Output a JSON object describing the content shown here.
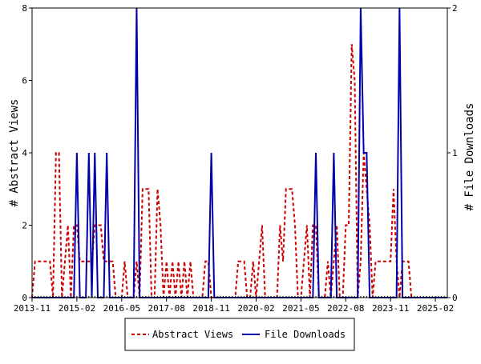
{
  "chart_data": {
    "type": "line",
    "x_tick_labels": [
      "2013-11",
      "2015-02",
      "2016-05",
      "2017-08",
      "2018-11",
      "2020-02",
      "2021-05",
      "2022-08",
      "2023-11",
      "2025-02"
    ],
    "y_left": {
      "label": "# Abstract Views",
      "lim": [
        0,
        8
      ],
      "ticks": [
        "0",
        "2",
        "4",
        "6",
        "8"
      ]
    },
    "y_right": {
      "label": "# File Downloads",
      "lim": [
        0,
        2
      ],
      "ticks": [
        "0",
        "1",
        "2"
      ]
    },
    "grid": false,
    "legend_position": "bottom",
    "n_months": 140,
    "series": [
      {
        "name": "Abstract Views",
        "axis": "left",
        "color": "#cc0000",
        "style": "dashed",
        "values": [
          0,
          1,
          1,
          1,
          1,
          1,
          1,
          0,
          4,
          4,
          0,
          1,
          2,
          0,
          2,
          2,
          1,
          1,
          1,
          1,
          1,
          2,
          2,
          2,
          1,
          1,
          1,
          1,
          0,
          0,
          0,
          1,
          0,
          0,
          0,
          1,
          0,
          3,
          3,
          3,
          0,
          0,
          3,
          2,
          0,
          1,
          0,
          1,
          0,
          1,
          0,
          1,
          0,
          1,
          0,
          0,
          0,
          0,
          1,
          1,
          0,
          0,
          0,
          0,
          0,
          0,
          0,
          0,
          0,
          1,
          1,
          1,
          0,
          0,
          1,
          0,
          1,
          2,
          0,
          0,
          0,
          0,
          0,
          2,
          1,
          3,
          3,
          3,
          2,
          0,
          0,
          1,
          2,
          0,
          2,
          2,
          0,
          0,
          0,
          1,
          0,
          1,
          2,
          0,
          0,
          2,
          2,
          7,
          6,
          0,
          1,
          4,
          3,
          2,
          0,
          1,
          1,
          1,
          1,
          1,
          1,
          3,
          1,
          0,
          1,
          1,
          1,
          0,
          0,
          0,
          0,
          0,
          0,
          0,
          0,
          0,
          0,
          0,
          0,
          0
        ]
      },
      {
        "name": "File Downloads",
        "axis": "right",
        "color": "#0000aa",
        "style": "solid",
        "values": [
          0,
          0,
          0,
          0,
          0,
          0,
          0,
          0,
          0,
          0,
          0,
          0,
          0,
          0,
          0,
          1,
          0,
          0,
          0,
          1,
          0,
          1,
          0,
          0,
          0,
          1,
          0,
          0,
          0,
          0,
          0,
          0,
          0,
          0,
          0,
          2,
          0,
          0,
          0,
          0,
          0,
          0,
          0,
          0,
          0,
          0,
          0,
          0,
          0,
          0,
          0,
          0,
          0,
          0,
          0,
          0,
          0,
          0,
          0,
          0,
          1,
          0,
          0,
          0,
          0,
          0,
          0,
          0,
          0,
          0,
          0,
          0,
          0,
          0,
          0,
          0,
          0,
          0,
          0,
          0,
          0,
          0,
          0,
          0,
          0,
          0,
          0,
          0,
          0,
          0,
          0,
          0,
          0,
          0,
          0,
          1,
          0,
          0,
          0,
          0,
          0,
          1,
          0,
          0,
          0,
          0,
          0,
          0,
          0,
          0,
          2,
          1,
          1,
          0,
          0,
          0,
          0,
          0,
          0,
          0,
          0,
          0,
          0,
          2,
          0,
          0,
          0,
          0,
          0,
          0,
          0,
          0,
          0,
          0,
          0,
          0,
          0,
          0,
          0,
          0
        ]
      }
    ]
  }
}
